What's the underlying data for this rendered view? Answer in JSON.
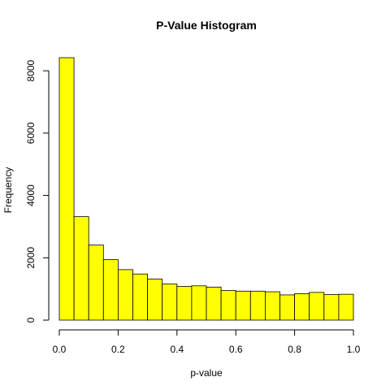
{
  "chart_data": {
    "type": "bar",
    "title": "P-Value Histogram",
    "xlabel": "p-value",
    "ylabel": "Frequency",
    "bin_edges": [
      0,
      0.05,
      0.1,
      0.15,
      0.2,
      0.25,
      0.3,
      0.35,
      0.4,
      0.45,
      0.5,
      0.55,
      0.6,
      0.65,
      0.7,
      0.75,
      0.8,
      0.85,
      0.9,
      0.95,
      1.0
    ],
    "values": [
      8420,
      3320,
      2410,
      1940,
      1620,
      1480,
      1320,
      1160,
      1080,
      1100,
      1060,
      950,
      930,
      930,
      910,
      810,
      850,
      890,
      820,
      830
    ],
    "xlim": [
      0,
      1
    ],
    "ylim": [
      0,
      8420
    ],
    "xticks": [
      0,
      0.2,
      0.4,
      0.6,
      0.8,
      1
    ],
    "xtick_labels": [
      "0.0",
      "0.2",
      "0.4",
      "0.6",
      "0.8",
      "1.0"
    ],
    "yticks": [
      0,
      2000,
      4000,
      6000,
      8000
    ],
    "ytick_labels": [
      "0",
      "2000",
      "4000",
      "6000",
      "8000"
    ],
    "bar_color": "#ffff00",
    "border_color": "#000000",
    "grid": false,
    "legend": "none"
  }
}
